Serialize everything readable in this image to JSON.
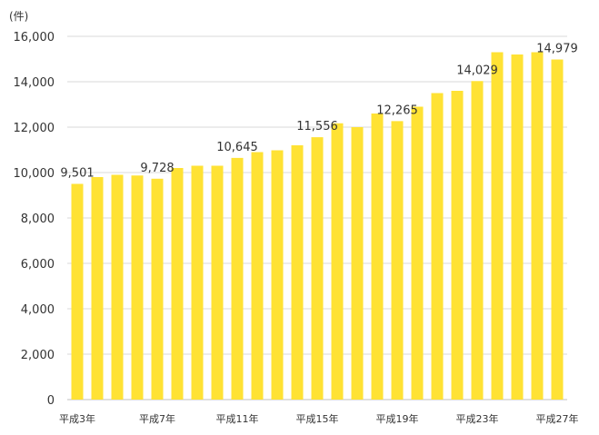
{
  "chart_data": {
    "type": "bar",
    "unit_label": "(件)",
    "bar_color": "#FFE234",
    "ylim": [
      0,
      16000
    ],
    "y_ticks": [
      "0",
      "2,000",
      "4,000",
      "6,000",
      "8,000",
      "10,000",
      "12,000",
      "14,000",
      "16,000"
    ],
    "y_tick_values": [
      0,
      2000,
      4000,
      6000,
      8000,
      10000,
      12000,
      14000,
      16000
    ],
    "categories": [
      "平成3年",
      "平成4年",
      "平成5年",
      "平成6年",
      "平成7年",
      "平成8年",
      "平成9年",
      "平成10年",
      "平成11年",
      "平成12年",
      "平成13年",
      "平成14年",
      "平成15年",
      "平成16年",
      "平成17年",
      "平成18年",
      "平成19年",
      "平成20年",
      "平成21年",
      "平成22年",
      "平成23年",
      "平成24年",
      "平成25年",
      "平成26年",
      "平成27年"
    ],
    "x_tick_labels": [
      "平成3年",
      "",
      "",
      "",
      "平成7年",
      "",
      "",
      "",
      "平成11年",
      "",
      "",
      "",
      "平成15年",
      "",
      "",
      "",
      "平成19年",
      "",
      "",
      "",
      "平成23年",
      "",
      "",
      "",
      "平成27年"
    ],
    "values": [
      9501,
      9800,
      9900,
      9870,
      9728,
      10200,
      10300,
      10300,
      10645,
      10900,
      10980,
      11200,
      11556,
      12170,
      12000,
      12600,
      12265,
      12900,
      13500,
      13600,
      14029,
      15300,
      15200,
      15300,
      14979
    ],
    "data_labels": [
      "9,501",
      "",
      "",
      "",
      "9,728",
      "",
      "",
      "",
      "10,645",
      "",
      "",
      "",
      "11,556",
      "",
      "",
      "",
      "12,265",
      "",
      "",
      "",
      "14,029",
      "",
      "",
      "",
      "14,979"
    ],
    "grid": true,
    "legend": "none"
  }
}
